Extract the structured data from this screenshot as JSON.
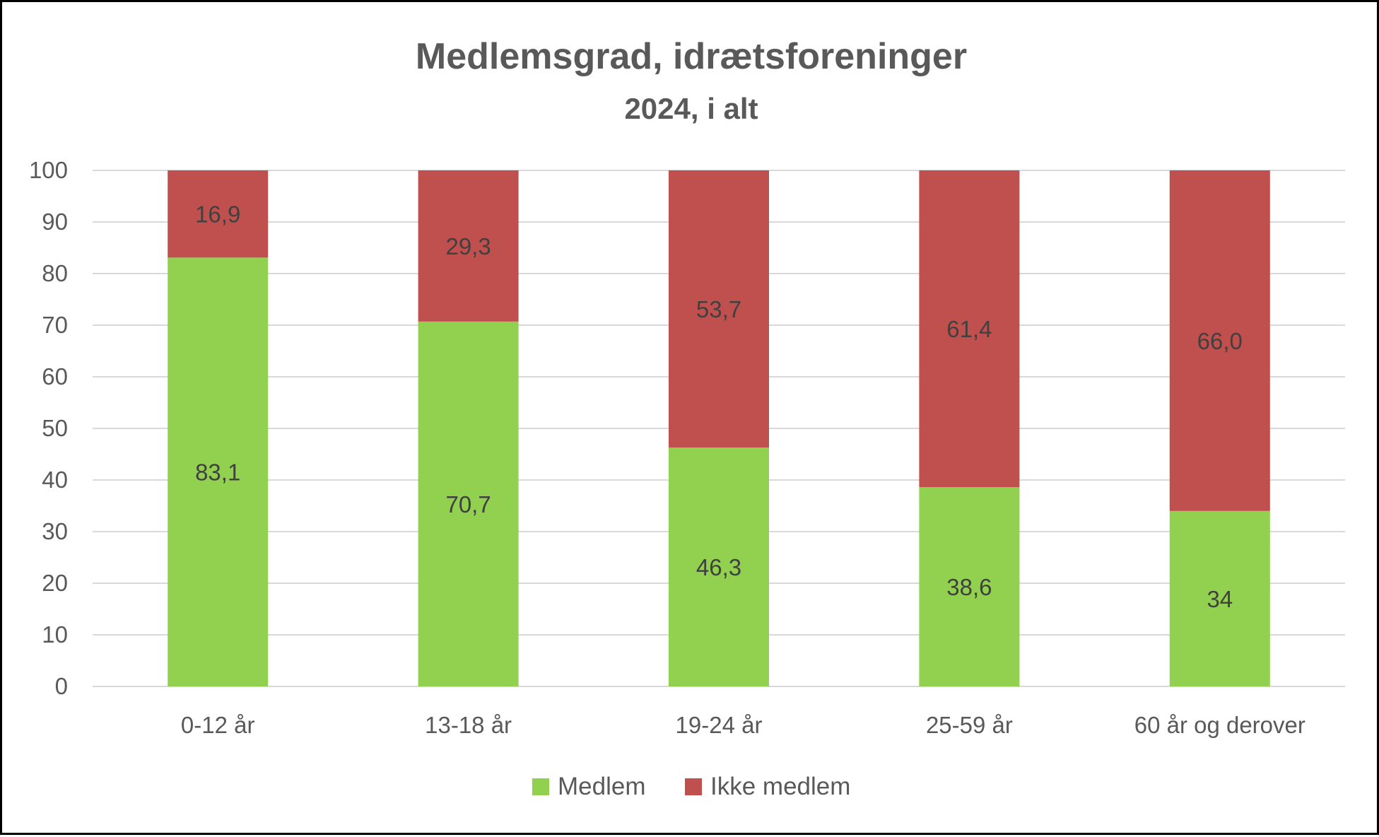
{
  "chart_data": {
    "type": "bar",
    "stacked": true,
    "title": "Medlemsgrad, idrætsforeninger",
    "subtitle": "2024, i alt",
    "xlabel": "",
    "ylabel": "",
    "ylim": [
      0,
      100
    ],
    "yticks": [
      "0",
      "10",
      "20",
      "30",
      "40",
      "50",
      "60",
      "70",
      "80",
      "90",
      "100"
    ],
    "grid": true,
    "legend_position": "bottom",
    "categories": [
      "0-12 år",
      "13-18 år",
      "19-24 år",
      "25-59 år",
      "60 år og derover"
    ],
    "series": [
      {
        "name": "Medlem",
        "color": "#92D050",
        "values": [
          83.1,
          70.7,
          46.3,
          38.6,
          34.0
        ],
        "labels": [
          "83,1",
          "70,7",
          "46,3",
          "38,6",
          "34"
        ]
      },
      {
        "name": "Ikke medlem",
        "color": "#C0504D",
        "values": [
          16.9,
          29.3,
          53.7,
          61.4,
          66.0
        ],
        "labels": [
          "16,9",
          "29,3",
          "53,7",
          "61,4",
          "66,0"
        ]
      }
    ]
  }
}
